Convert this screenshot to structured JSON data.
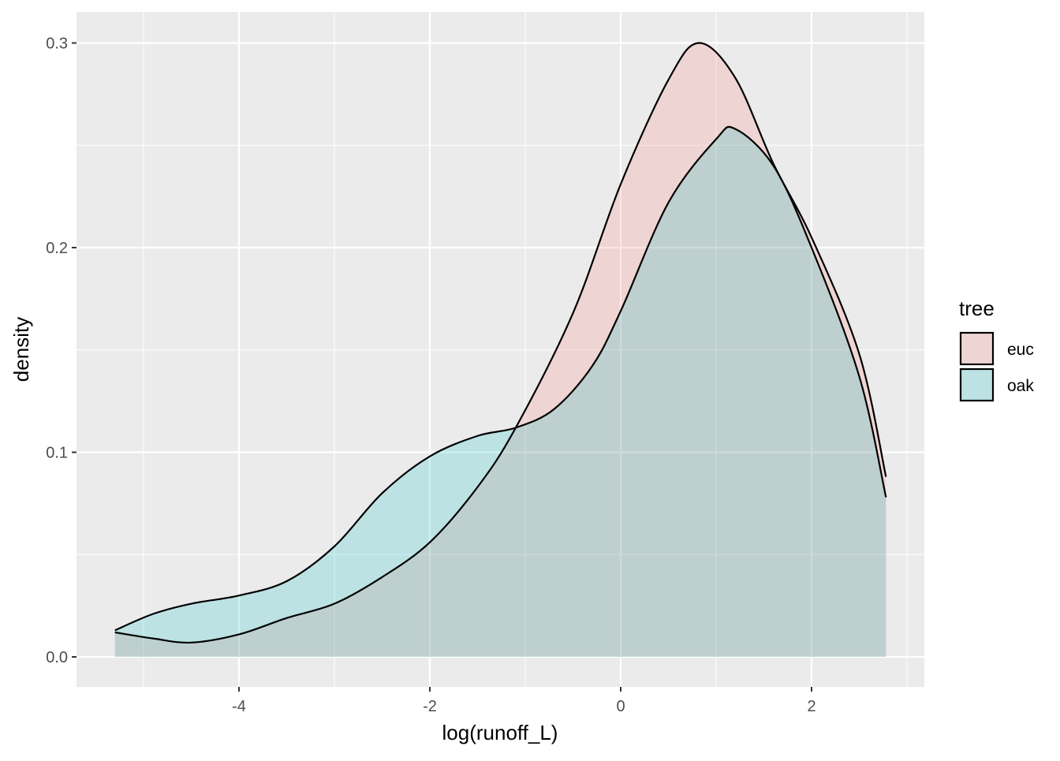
{
  "chart_data": {
    "type": "area",
    "subtype": "density",
    "title": "",
    "xlabel": "log(runoff_L)",
    "ylabel": "density",
    "xlim": [
      -5.6,
      3.2
    ],
    "ylim": [
      -0.015,
      0.315
    ],
    "x_ticks": [
      -4,
      -2,
      0,
      2
    ],
    "x_tick_labels": [
      "-4",
      "-2",
      "0",
      "2"
    ],
    "y_ticks": [
      0,
      0.1,
      0.2,
      0.3
    ],
    "y_tick_labels": [
      "0.0",
      "0.1",
      "0.2",
      "0.3"
    ],
    "grid": true,
    "legend": {
      "title": "tree",
      "placement": "right"
    },
    "series": [
      {
        "name": "euc",
        "color": "#F8766D",
        "fill_alpha": 0.2,
        "x": [
          -5.3,
          -4.9,
          -4.5,
          -4.0,
          -3.5,
          -3.0,
          -2.5,
          -2.0,
          -1.5,
          -1.1,
          -0.5,
          0.0,
          0.5,
          0.82,
          1.2,
          1.6,
          2.0,
          2.5,
          2.78
        ],
        "y": [
          0.012,
          0.009,
          0.007,
          0.011,
          0.019,
          0.026,
          0.039,
          0.056,
          0.083,
          0.112,
          0.168,
          0.231,
          0.282,
          0.3,
          0.283,
          0.241,
          0.205,
          0.148,
          0.088
        ]
      },
      {
        "name": "oak",
        "color": "#00BFC4",
        "fill_alpha": 0.2,
        "x": [
          -5.3,
          -4.9,
          -4.5,
          -4.0,
          -3.5,
          -3.0,
          -2.5,
          -2.0,
          -1.5,
          -1.1,
          -0.7,
          -0.3,
          0.0,
          0.5,
          1.0,
          1.2,
          1.6,
          2.0,
          2.5,
          2.78
        ],
        "y": [
          0.013,
          0.021,
          0.026,
          0.03,
          0.037,
          0.054,
          0.08,
          0.098,
          0.108,
          0.112,
          0.121,
          0.142,
          0.169,
          0.222,
          0.253,
          0.258,
          0.24,
          0.2,
          0.137,
          0.078
        ]
      }
    ]
  }
}
